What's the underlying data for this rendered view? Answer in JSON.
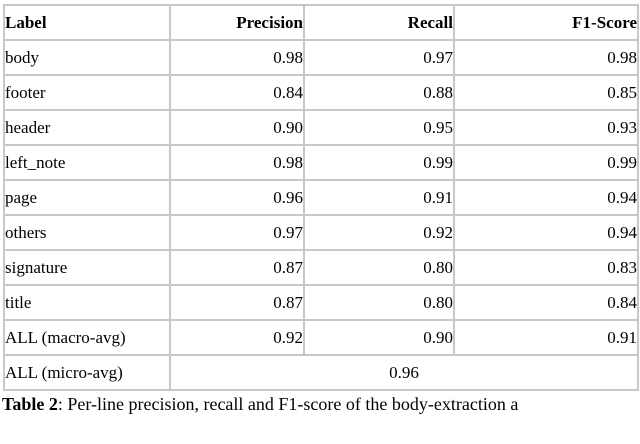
{
  "table": {
    "columns": [
      "Label",
      "Precision",
      "Recall",
      "F1-Score"
    ],
    "rows": [
      {
        "label": "body",
        "precision": "0.98",
        "recall": "0.97",
        "f1": "0.98"
      },
      {
        "label": "footer",
        "precision": "0.84",
        "recall": "0.88",
        "f1": "0.85"
      },
      {
        "label": "header",
        "precision": "0.90",
        "recall": "0.95",
        "f1": "0.93"
      },
      {
        "label": "left_note",
        "precision": "0.98",
        "recall": "0.99",
        "f1": "0.99"
      },
      {
        "label": "page",
        "precision": "0.96",
        "recall": "0.91",
        "f1": "0.94"
      },
      {
        "label": "others",
        "precision": "0.97",
        "recall": "0.92",
        "f1": "0.94"
      },
      {
        "label": "signature",
        "precision": "0.87",
        "recall": "0.80",
        "f1": "0.83"
      },
      {
        "label": "title",
        "precision": "0.87",
        "recall": "0.80",
        "f1": "0.84"
      },
      {
        "label": "ALL (macro-avg)",
        "precision": "0.92",
        "recall": "0.90",
        "f1": "0.91"
      }
    ],
    "micro_row": {
      "label": "ALL (micro-avg)",
      "value": "0.96"
    }
  },
  "caption": {
    "label": "Table 2",
    "text": ": Per-line precision, recall and F1-score of the body-extraction a"
  },
  "colors": {
    "border": "#c8c8c8",
    "text": "#000000",
    "background": "#ffffff"
  }
}
